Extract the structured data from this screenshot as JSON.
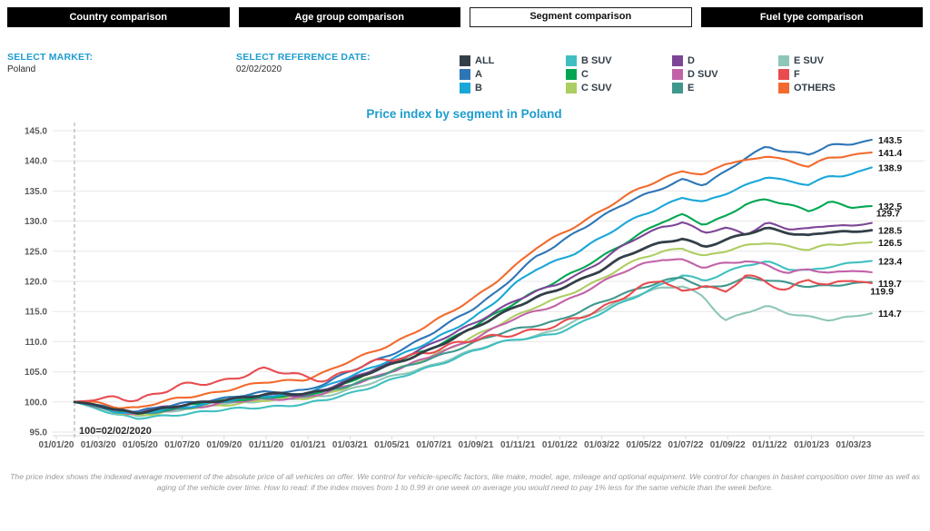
{
  "tabs": [
    {
      "label": "Country comparison",
      "active": false
    },
    {
      "label": "Age group comparison",
      "active": false
    },
    {
      "label": "Segment comparison",
      "active": true
    },
    {
      "label": "Fuel type comparison",
      "active": false
    }
  ],
  "controls": {
    "market_label": "SELECT MARKET:",
    "market_value": "Poland",
    "ref_date_label": "SELECT REFERENCE DATE:",
    "ref_date_value": "02/02/2020"
  },
  "colors": {
    "accent_cyan": "#1e9ccf",
    "grid": "#e7e7e7",
    "axis_line": "#d9d9d9",
    "axis_text": "#595959",
    "ref_line": "#a3a3a3",
    "tab_bg": "#000000",
    "end_label_text": "#141414"
  },
  "footer": {
    "text": "The price index shows the indexed average movement of the absolute price of all vehicles on offer. We control for vehicle-specific factors, like make, model, age, mileage and optional equipment. We control for changes in basket composition over time as well as aging of the vehicle over time. How to read: if the index moves from 1 to 0.99 in one week on average you would need to pay 1% less for the same vehicle than the week before."
  },
  "chart_data": {
    "type": "line",
    "title": "Price index by segment in Poland",
    "ylim": [
      95,
      145
    ],
    "yticks": [
      95,
      100,
      105,
      110,
      115,
      120,
      125,
      130,
      135,
      140,
      145
    ],
    "ytick_labels": [
      "95.0",
      "100.0",
      "105.0",
      "110.0",
      "115.0",
      "120.0",
      "125.0",
      "130.0",
      "135.0",
      "140.0",
      "145.0"
    ],
    "x_ticks": [
      "01/01/20",
      "01/03/20",
      "01/05/20",
      "01/07/20",
      "01/09/20",
      "01/11/20",
      "01/01/21",
      "01/03/21",
      "01/05/21",
      "01/07/21",
      "01/09/21",
      "01/11/21",
      "01/01/22",
      "01/03/22",
      "01/05/22",
      "01/07/22",
      "01/09/22",
      "01/11/22",
      "01/01/23",
      "01/03/23"
    ],
    "grid": "horizontal",
    "legend_position": "top",
    "reference_annotation": "100=02/02/2020",
    "reference_date": "02/02/2020",
    "months": [
      "2020-02",
      "2020-03",
      "2020-04",
      "2020-05",
      "2020-06",
      "2020-07",
      "2020-08",
      "2020-09",
      "2020-10",
      "2020-11",
      "2020-12",
      "2021-01",
      "2021-02",
      "2021-03",
      "2021-04",
      "2021-05",
      "2021-06",
      "2021-07",
      "2021-08",
      "2021-09",
      "2021-10",
      "2021-11",
      "2021-12",
      "2022-01",
      "2022-02",
      "2022-03",
      "2022-04",
      "2022-05",
      "2022-06",
      "2022-07",
      "2022-08",
      "2022-09",
      "2022-10",
      "2022-11",
      "2022-12",
      "2023-01",
      "2023-02",
      "2023-03",
      "2023-04"
    ],
    "series": [
      {
        "name": "ALL",
        "color": "#333f48",
        "end_label": "128.5",
        "values": [
          100,
          99.5,
          98.6,
          98.3,
          98.8,
          99.3,
          99.8,
          100.3,
          100.8,
          101.2,
          101.3,
          101.3,
          102.1,
          103.3,
          104.7,
          106.0,
          107.4,
          108.8,
          110.4,
          112.1,
          114.0,
          115.9,
          117.3,
          118.5,
          120.0,
          121.8,
          123.8,
          125.3,
          126.3,
          127.2,
          125.8,
          126.8,
          127.8,
          128.8,
          128.2,
          127.6,
          128.2,
          128.1,
          128.5
        ]
      },
      {
        "name": "A",
        "color": "#2e75b6",
        "end_label": "143.5",
        "values": [
          100,
          99.6,
          98.8,
          98.5,
          99.0,
          99.6,
          100.1,
          100.6,
          101.1,
          101.5,
          101.7,
          102.0,
          103.2,
          104.8,
          106.3,
          107.8,
          109.5,
          111.3,
          113.3,
          115.5,
          118.0,
          121.0,
          124.0,
          126.0,
          128.5,
          130.5,
          132.5,
          134.0,
          135.5,
          137.0,
          136.0,
          138.0,
          140.5,
          142.5,
          141.5,
          141.0,
          142.5,
          142.8,
          143.5
        ]
      },
      {
        "name": "B",
        "color": "#19a7d8",
        "end_label": "138.9",
        "values": [
          100,
          99.4,
          98.4,
          98.0,
          98.5,
          99.1,
          99.6,
          100.1,
          100.6,
          101.0,
          101.2,
          101.5,
          102.5,
          104.0,
          105.5,
          107.0,
          108.5,
          110.0,
          112.0,
          114.0,
          116.5,
          119.5,
          122.0,
          123.5,
          125.0,
          127.0,
          129.0,
          131.0,
          132.5,
          134.0,
          133.0,
          134.5,
          136.0,
          137.5,
          136.5,
          136.0,
          137.5,
          137.8,
          138.9
        ]
      },
      {
        "name": "B SUV",
        "color": "#41bfc0",
        "end_label": "123.4",
        "values": [
          100,
          99.0,
          97.8,
          97.2,
          97.6,
          98.0,
          98.3,
          98.6,
          98.9,
          99.2,
          99.4,
          99.6,
          100.3,
          101.3,
          102.4,
          103.5,
          104.6,
          105.8,
          107.1,
          108.5,
          109.5,
          110.3,
          110.8,
          111.5,
          112.8,
          114.5,
          116.3,
          118.0,
          119.5,
          121.0,
          120.0,
          121.5,
          122.8,
          123.2,
          122.0,
          121.8,
          122.6,
          123.0,
          123.4
        ]
      },
      {
        "name": "C",
        "color": "#00a651",
        "end_label": "132.5",
        "values": [
          100,
          99.4,
          98.5,
          98.2,
          98.7,
          99.2,
          99.7,
          100.1,
          100.5,
          100.8,
          101.0,
          101.0,
          102.0,
          103.3,
          104.8,
          106.2,
          107.6,
          109.0,
          110.6,
          112.4,
          114.4,
          116.5,
          118.5,
          120.0,
          121.8,
          123.8,
          126.0,
          128.0,
          129.8,
          131.0,
          129.5,
          130.8,
          132.8,
          133.5,
          132.8,
          131.8,
          133.2,
          132.2,
          132.5
        ]
      },
      {
        "name": "C SUV",
        "color": "#aecd62",
        "end_label": "126.5",
        "values": [
          100,
          99.2,
          98.2,
          97.8,
          98.2,
          98.7,
          99.1,
          99.5,
          99.9,
          100.2,
          100.4,
          100.6,
          101.4,
          102.5,
          103.8,
          105.0,
          106.3,
          107.6,
          109.0,
          110.7,
          112.5,
          114.3,
          115.8,
          117.0,
          118.5,
          120.3,
          122.2,
          123.8,
          124.8,
          125.6,
          124.2,
          125.0,
          125.8,
          126.5,
          125.9,
          125.3,
          126.0,
          126.2,
          126.5
        ]
      },
      {
        "name": "D",
        "color": "#7d4596",
        "end_label": "129.7",
        "values": [
          100,
          99.5,
          98.7,
          98.4,
          98.9,
          99.4,
          99.9,
          100.3,
          100.7,
          101.0,
          101.2,
          101.2,
          102.2,
          103.5,
          105.0,
          106.5,
          108.0,
          109.5,
          111.2,
          113.0,
          115.0,
          116.8,
          118.2,
          119.5,
          121.2,
          123.2,
          125.5,
          127.5,
          129.0,
          130.0,
          128.0,
          128.8,
          127.8,
          129.8,
          128.8,
          128.6,
          129.3,
          129.2,
          129.7
        ]
      },
      {
        "name": "D SUV",
        "color": "#c263a8",
        "end_label": null,
        "values": [
          100,
          99.3,
          98.4,
          98.0,
          98.4,
          98.9,
          99.3,
          99.7,
          100.1,
          100.4,
          100.6,
          100.8,
          101.5,
          102.6,
          103.8,
          105.0,
          106.2,
          107.5,
          109.0,
          110.5,
          112.2,
          113.8,
          115.0,
          116.2,
          117.8,
          119.5,
          121.3,
          122.8,
          123.8,
          123.5,
          122.2,
          123.0,
          123.5,
          122.8,
          121.2,
          122.0,
          121.4,
          121.9,
          121.5
        ]
      },
      {
        "name": "E",
        "color": "#3f988d",
        "end_label": "119.9",
        "values": [
          100,
          99.3,
          98.3,
          98.0,
          98.4,
          98.9,
          99.4,
          99.9,
          100.4,
          100.8,
          101.0,
          101.0,
          101.7,
          102.7,
          103.8,
          104.9,
          106.0,
          107.2,
          108.5,
          109.8,
          111.0,
          112.0,
          112.8,
          113.5,
          114.8,
          116.3,
          117.8,
          119.0,
          120.0,
          120.6,
          118.8,
          119.5,
          120.6,
          120.2,
          119.6,
          119.2,
          119.4,
          119.6,
          119.9
        ]
      },
      {
        "name": "E SUV",
        "color": "#8ec6b8",
        "end_label": "114.7",
        "values": [
          100,
          99.2,
          98.2,
          97.8,
          98.2,
          98.7,
          99.2,
          99.6,
          100.0,
          100.3,
          100.5,
          100.5,
          101.1,
          102.0,
          103.0,
          104.0,
          105.0,
          106.1,
          107.3,
          108.5,
          109.6,
          110.4,
          111.0,
          112.0,
          113.5,
          115.2,
          116.8,
          118.0,
          118.8,
          119.2,
          117.5,
          113.5,
          114.8,
          115.8,
          114.8,
          114.2,
          113.6,
          114.0,
          114.7
        ]
      },
      {
        "name": "F",
        "color": "#e84c50",
        "end_label": "119.7",
        "values": [
          100,
          100.3,
          100.8,
          100.5,
          101.5,
          102.5,
          103.0,
          103.5,
          104.5,
          105.3,
          104.8,
          104.2,
          103.8,
          105.0,
          106.2,
          107.0,
          107.8,
          108.5,
          109.3,
          110.2,
          111.0,
          111.5,
          111.8,
          112.5,
          114.0,
          115.5,
          117.2,
          118.8,
          120.3,
          118.2,
          119.8,
          117.8,
          121.0,
          119.8,
          118.8,
          120.4,
          119.0,
          120.3,
          119.7
        ]
      },
      {
        "name": "OTHERS",
        "color": "#f26a2d",
        "end_label": "141.4",
        "values": [
          100,
          100.0,
          99.2,
          99.0,
          99.8,
          100.6,
          101.2,
          101.8,
          102.5,
          103.2,
          103.5,
          103.8,
          105.0,
          106.5,
          108.0,
          109.5,
          111.2,
          113.0,
          115.0,
          117.2,
          119.8,
          122.5,
          125.5,
          127.5,
          129.5,
          131.5,
          133.5,
          135.5,
          137.0,
          138.5,
          137.5,
          139.5,
          140.0,
          141.0,
          140.0,
          139.0,
          140.5,
          141.0,
          141.4
        ]
      }
    ]
  }
}
